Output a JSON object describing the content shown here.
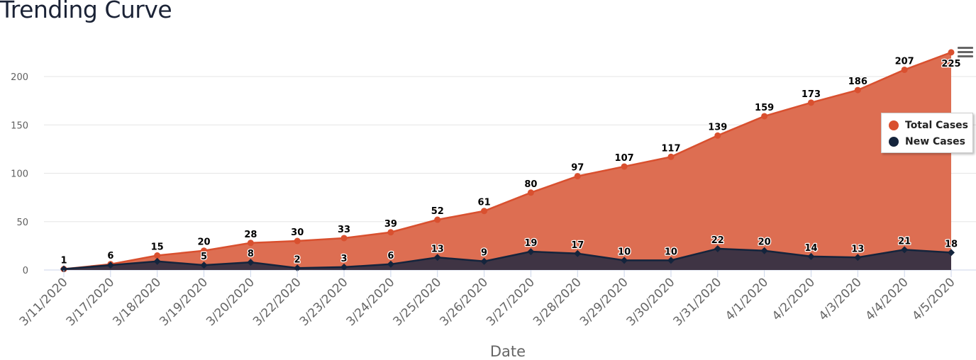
{
  "header": {
    "title": "Trending Curve"
  },
  "menu": {
    "icon": "hamburger-menu-icon"
  },
  "colors": {
    "total_line": "#d9502f",
    "total_fill": "#dd6e52",
    "new_line": "#14243c",
    "new_fill": "#3f3444",
    "grid": "#e6e6e6"
  },
  "legend": {
    "items": [
      {
        "label": "Total Cases",
        "color": "#d9502f"
      },
      {
        "label": "New Cases",
        "color": "#14243c"
      }
    ]
  },
  "chart_data": {
    "type": "area",
    "title": "Trending Curve",
    "xlabel": "Date",
    "ylabel": "",
    "ylim": [
      0,
      225
    ],
    "yticks": [
      0,
      50,
      100,
      150,
      200
    ],
    "grid": true,
    "legend_position": "right",
    "categories": [
      "3/11/2020",
      "3/17/2020",
      "3/18/2020",
      "3/19/2020",
      "3/20/2020",
      "3/22/2020",
      "3/23/2020",
      "3/24/2020",
      "3/25/2020",
      "3/26/2020",
      "3/27/2020",
      "3/28/2020",
      "3/29/2020",
      "3/30/2020",
      "3/31/2020",
      "4/1/2020",
      "4/2/2020",
      "4/3/2020",
      "4/4/2020",
      "4/5/2020"
    ],
    "series": [
      {
        "name": "Total Cases",
        "values": [
          1,
          6,
          15,
          20,
          28,
          30,
          33,
          39,
          52,
          61,
          80,
          97,
          107,
          117,
          139,
          159,
          173,
          186,
          207,
          225
        ],
        "labels": [
          "1",
          "6",
          "15",
          "20",
          "28",
          "30",
          "33",
          "39",
          "52",
          "61",
          "80",
          "97",
          "107",
          "117",
          "139",
          "159",
          "173",
          "186",
          "207",
          "225"
        ]
      },
      {
        "name": "New Cases",
        "values": [
          1,
          5,
          9,
          5,
          8,
          2,
          3,
          6,
          13,
          9,
          19,
          17,
          10,
          10,
          22,
          20,
          14,
          13,
          21,
          18
        ],
        "labels": [
          "",
          "",
          "",
          "5",
          "8",
          "2",
          "3",
          "6",
          "13",
          "9",
          "19",
          "17",
          "10",
          "10",
          "22",
          "20",
          "14",
          "13",
          "21",
          "18"
        ]
      }
    ]
  }
}
